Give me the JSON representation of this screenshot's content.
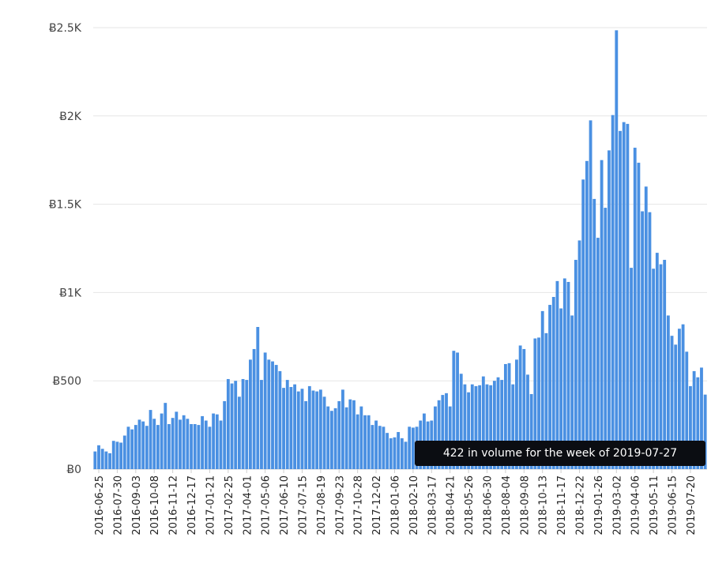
{
  "chart_data": {
    "type": "bar",
    "ylim": [
      0,
      2500
    ],
    "y_ticks": [
      {
        "value": 0,
        "label": "Ƀ0"
      },
      {
        "value": 500,
        "label": "Ƀ500"
      },
      {
        "value": 1000,
        "label": "Ƀ1K"
      },
      {
        "value": 1500,
        "label": "Ƀ1.5K"
      },
      {
        "value": 2000,
        "label": "Ƀ2K"
      },
      {
        "value": 2500,
        "label": "Ƀ2.5K"
      }
    ],
    "x_tick_labels": [
      {
        "label": "2016-06-25",
        "index": 1
      },
      {
        "label": "2016-07-30",
        "index": 6
      },
      {
        "label": "2016-09-03",
        "index": 11
      },
      {
        "label": "2016-10-08",
        "index": 16
      },
      {
        "label": "2016-11-12",
        "index": 21
      },
      {
        "label": "2016-12-17",
        "index": 26
      },
      {
        "label": "2017-01-21",
        "index": 31
      },
      {
        "label": "2017-02-25",
        "index": 36
      },
      {
        "label": "2017-04-01",
        "index": 41
      },
      {
        "label": "2017-05-06",
        "index": 46
      },
      {
        "label": "2017-06-10",
        "index": 51
      },
      {
        "label": "2017-07-15",
        "index": 56
      },
      {
        "label": "2017-08-19",
        "index": 61
      },
      {
        "label": "2017-09-23",
        "index": 66
      },
      {
        "label": "2017-10-28",
        "index": 71
      },
      {
        "label": "2017-12-02",
        "index": 76
      },
      {
        "label": "2018-01-06",
        "index": 81
      },
      {
        "label": "2018-02-10",
        "index": 86
      },
      {
        "label": "2018-03-17",
        "index": 91
      },
      {
        "label": "2018-04-21",
        "index": 96
      },
      {
        "label": "2018-05-26",
        "index": 101
      },
      {
        "label": "2018-06-30",
        "index": 106
      },
      {
        "label": "2018-08-04",
        "index": 111
      },
      {
        "label": "2018-09-08",
        "index": 116
      },
      {
        "label": "2018-10-13",
        "index": 121
      },
      {
        "label": "2018-11-17",
        "index": 126
      },
      {
        "label": "2018-12-22",
        "index": 131
      },
      {
        "label": "2019-01-26",
        "index": 136
      },
      {
        "label": "2019-03-02",
        "index": 141
      },
      {
        "label": "2019-04-06",
        "index": 146
      },
      {
        "label": "2019-05-11",
        "index": 151
      },
      {
        "label": "2019-06-15",
        "index": 156
      },
      {
        "label": "2019-07-20",
        "index": 161
      }
    ],
    "series": [
      {
        "values": [
          100,
          135,
          115,
          100,
          90,
          160,
          155,
          150,
          190,
          240,
          225,
          250,
          280,
          270,
          245,
          335,
          285,
          250,
          315,
          375,
          255,
          290,
          325,
          280,
          305,
          285,
          255,
          255,
          250,
          300,
          275,
          240,
          315,
          310,
          275,
          385,
          510,
          485,
          500,
          410,
          510,
          505,
          620,
          680,
          805,
          505,
          660,
          620,
          610,
          590,
          555,
          460,
          505,
          465,
          480,
          440,
          455,
          385,
          470,
          445,
          440,
          450,
          410,
          355,
          330,
          345,
          385,
          450,
          350,
          395,
          390,
          310,
          355,
          305,
          305,
          250,
          275,
          245,
          240,
          205,
          175,
          180,
          210,
          175,
          155,
          240,
          235,
          240,
          275,
          315,
          270,
          275,
          355,
          390,
          420,
          430,
          355,
          670,
          660,
          540,
          480,
          435,
          480,
          470,
          475,
          525,
          480,
          475,
          500,
          520,
          505,
          595,
          600,
          480,
          620,
          700,
          680,
          535,
          425,
          740,
          745,
          895,
          770,
          930,
          975,
          1065,
          910,
          1080,
          1060,
          870,
          1185,
          1295,
          1640,
          1745,
          1975,
          1530,
          1310,
          1750,
          1480,
          1805,
          2005,
          2485,
          1915,
          1965,
          1955,
          1140,
          1820,
          1735,
          1460,
          1600,
          1455,
          1135,
          1225,
          1160,
          1185,
          870,
          755,
          705,
          795,
          820,
          665,
          470,
          555,
          520,
          575,
          422
        ]
      }
    ],
    "colors": {
      "bar": "#4a90e2",
      "grid": "#e6e6e6"
    },
    "tooltip": "422 in volume for the week of 2019-07-27"
  }
}
